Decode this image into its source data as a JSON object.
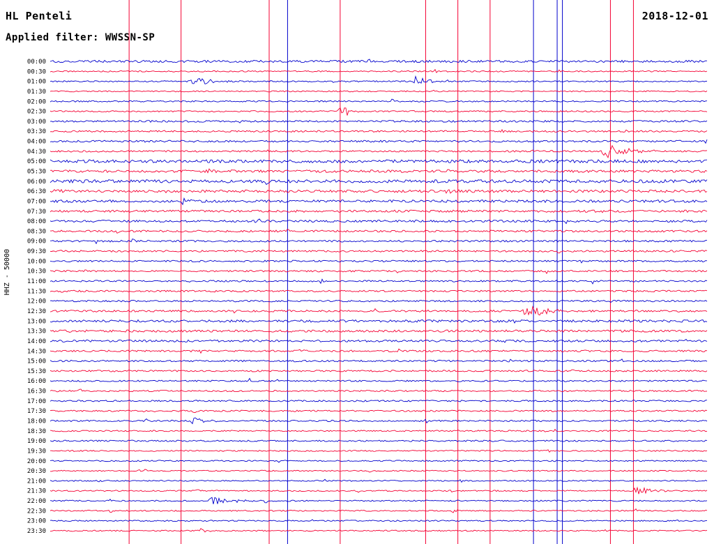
{
  "header": {
    "station": "HL Penteli",
    "date": "2018-12-01",
    "filter_line": "Applied filter: WWSSN-SP"
  },
  "y_axis_label": "HHZ - 50000",
  "colors": {
    "blue": "#0000cc",
    "red": "#f40032",
    "text": "#000000",
    "background": "#ffffff"
  },
  "chart_data": {
    "type": "helicorder",
    "station": "HL Penteli",
    "date": "2018-12-01",
    "filter": "WWSSN-SP",
    "channel_scale": "HHZ - 50000",
    "row_interval_minutes": 30,
    "rows": [
      {
        "time": "00:00",
        "color": "blue",
        "noise": 1.6,
        "events": []
      },
      {
        "time": "00:30",
        "color": "red",
        "noise": 0.9,
        "events": []
      },
      {
        "time": "01:00",
        "color": "blue",
        "noise": 1.0,
        "events": [
          {
            "x": 0.21,
            "w": 0.09,
            "a": 5
          },
          {
            "x": 0.55,
            "w": 0.05,
            "a": 7
          }
        ]
      },
      {
        "time": "01:30",
        "color": "red",
        "noise": 0.9,
        "events": []
      },
      {
        "time": "02:00",
        "color": "blue",
        "noise": 1.0,
        "events": [
          {
            "x": 0.03,
            "w": 0.012,
            "a": 4
          }
        ]
      },
      {
        "time": "02:30",
        "color": "red",
        "noise": 1.0,
        "events": [
          {
            "x": 0.437,
            "w": 0.035,
            "a": 10
          }
        ]
      },
      {
        "time": "03:00",
        "color": "blue",
        "noise": 1.3,
        "events": []
      },
      {
        "time": "03:30",
        "color": "red",
        "noise": 1.2,
        "events": []
      },
      {
        "time": "04:00",
        "color": "blue",
        "noise": 1.4,
        "events": []
      },
      {
        "time": "04:30",
        "color": "red",
        "noise": 1.2,
        "events": [
          {
            "x": 0.835,
            "w": 0.095,
            "a": 11
          }
        ]
      },
      {
        "time": "05:00",
        "color": "blue",
        "noise": 2.2,
        "events": []
      },
      {
        "time": "05:30",
        "color": "red",
        "noise": 1.8,
        "events": [
          {
            "x": 0.232,
            "w": 0.045,
            "a": 4.5
          }
        ]
      },
      {
        "time": "06:00",
        "color": "blue",
        "noise": 2.2,
        "events": []
      },
      {
        "time": "06:30",
        "color": "red",
        "noise": 1.8,
        "events": [
          {
            "x": 0.004,
            "w": 0.045,
            "a": 4
          },
          {
            "x": 0.595,
            "w": 0.03,
            "a": 3.5
          }
        ]
      },
      {
        "time": "07:00",
        "color": "blue",
        "noise": 1.8,
        "events": [
          {
            "x": 0.198,
            "w": 0.028,
            "a": 4.5
          }
        ]
      },
      {
        "time": "07:30",
        "color": "red",
        "noise": 1.6,
        "events": []
      },
      {
        "time": "08:00",
        "color": "blue",
        "noise": 1.5,
        "events": [
          {
            "x": 0.315,
            "w": 0.02,
            "a": 3.5
          }
        ]
      },
      {
        "time": "08:30",
        "color": "red",
        "noise": 1.4,
        "events": []
      },
      {
        "time": "09:00",
        "color": "blue",
        "noise": 1.3,
        "events": []
      },
      {
        "time": "09:30",
        "color": "red",
        "noise": 1.3,
        "events": []
      },
      {
        "time": "10:00",
        "color": "blue",
        "noise": 1.2,
        "events": []
      },
      {
        "time": "10:30",
        "color": "red",
        "noise": 1.2,
        "events": [
          {
            "x": 0.05,
            "w": 0.012,
            "a": 3
          }
        ]
      },
      {
        "time": "11:00",
        "color": "blue",
        "noise": 1.2,
        "events": [
          {
            "x": 0.21,
            "w": 0.012,
            "a": 3
          }
        ]
      },
      {
        "time": "11:30",
        "color": "red",
        "noise": 1.2,
        "events": []
      },
      {
        "time": "12:00",
        "color": "blue",
        "noise": 1.2,
        "events": []
      },
      {
        "time": "12:30",
        "color": "red",
        "noise": 1.4,
        "events": [
          {
            "x": 0.718,
            "w": 0.06,
            "a": 15
          }
        ]
      },
      {
        "time": "13:00",
        "color": "blue",
        "noise": 1.7,
        "events": []
      },
      {
        "time": "13:30",
        "color": "red",
        "noise": 1.6,
        "events": []
      },
      {
        "time": "14:00",
        "color": "blue",
        "noise": 1.5,
        "events": []
      },
      {
        "time": "14:30",
        "color": "red",
        "noise": 1.3,
        "events": [
          {
            "x": 0.378,
            "w": 0.015,
            "a": 3.5
          }
        ]
      },
      {
        "time": "15:00",
        "color": "blue",
        "noise": 1.2,
        "events": []
      },
      {
        "time": "15:30",
        "color": "red",
        "noise": 1.2,
        "events": []
      },
      {
        "time": "16:00",
        "color": "blue",
        "noise": 1.1,
        "events": []
      },
      {
        "time": "16:30",
        "color": "red",
        "noise": 1.1,
        "events": []
      },
      {
        "time": "17:00",
        "color": "blue",
        "noise": 1.1,
        "events": []
      },
      {
        "time": "17:30",
        "color": "red",
        "noise": 1.1,
        "events": [
          {
            "x": 0.215,
            "w": 0.02,
            "a": 3
          }
        ]
      },
      {
        "time": "18:00",
        "color": "blue",
        "noise": 1.1,
        "events": [
          {
            "x": 0.213,
            "w": 0.05,
            "a": 8
          }
        ]
      },
      {
        "time": "18:30",
        "color": "red",
        "noise": 1.0,
        "events": []
      },
      {
        "time": "19:00",
        "color": "blue",
        "noise": 1.1,
        "events": []
      },
      {
        "time": "19:30",
        "color": "red",
        "noise": 0.9,
        "events": []
      },
      {
        "time": "20:00",
        "color": "blue",
        "noise": 0.9,
        "events": []
      },
      {
        "time": "20:30",
        "color": "red",
        "noise": 0.9,
        "events": [
          {
            "x": 0.48,
            "w": 0.02,
            "a": 2.5
          }
        ]
      },
      {
        "time": "21:00",
        "color": "blue",
        "noise": 0.9,
        "events": [
          {
            "x": 0.072,
            "w": 0.012,
            "a": 3
          }
        ]
      },
      {
        "time": "21:30",
        "color": "red",
        "noise": 0.9,
        "events": [
          {
            "x": 0.885,
            "w": 0.055,
            "a": 7
          },
          {
            "x": 0.222,
            "w": 0.018,
            "a": 5
          }
        ]
      },
      {
        "time": "22:00",
        "color": "blue",
        "noise": 1.0,
        "events": [
          {
            "x": 0.24,
            "w": 0.07,
            "a": 8
          },
          {
            "x": 0.08,
            "w": 0.012,
            "a": 3.5
          }
        ]
      },
      {
        "time": "22:30",
        "color": "red",
        "noise": 0.9,
        "events": [
          {
            "x": 0.61,
            "w": 0.015,
            "a": 4.5
          }
        ]
      },
      {
        "time": "23:00",
        "color": "blue",
        "noise": 0.9,
        "events": []
      },
      {
        "time": "23:30",
        "color": "red",
        "noise": 0.9,
        "events": [
          {
            "x": 0.228,
            "w": 0.02,
            "a": 4.5
          }
        ]
      }
    ],
    "vertical_lines": [
      {
        "x": 0.12,
        "color": "red"
      },
      {
        "x": 0.199,
        "color": "red"
      },
      {
        "x": 0.333,
        "color": "red"
      },
      {
        "x": 0.361,
        "color": "blue"
      },
      {
        "x": 0.441,
        "color": "red"
      },
      {
        "x": 0.571,
        "color": "red"
      },
      {
        "x": 0.62,
        "color": "red"
      },
      {
        "x": 0.669,
        "color": "red"
      },
      {
        "x": 0.735,
        "color": "blue"
      },
      {
        "x": 0.771,
        "color": "blue"
      },
      {
        "x": 0.779,
        "color": "blue"
      },
      {
        "x": 0.852,
        "color": "red"
      },
      {
        "x": 0.887,
        "color": "red"
      }
    ]
  }
}
